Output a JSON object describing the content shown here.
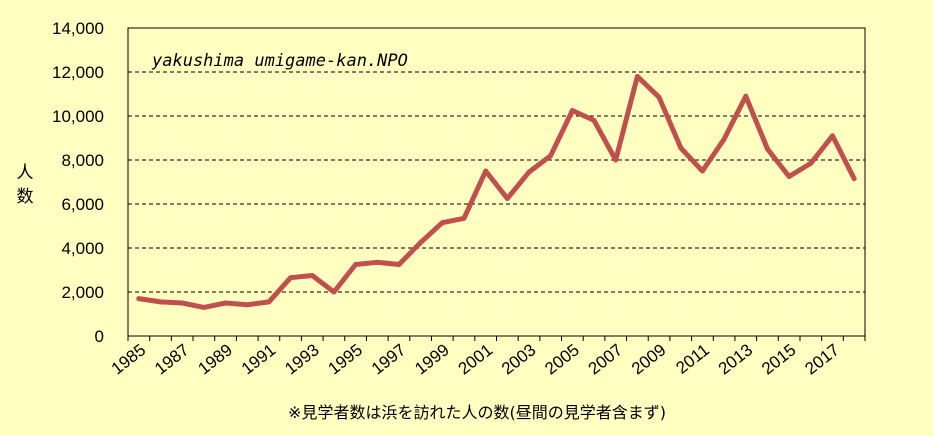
{
  "chart_data": {
    "type": "line",
    "title": "",
    "xlabel": "",
    "ylabel": "人数",
    "annotation": "yakushima umigame-kan.NPO",
    "note": "※見学者数は浜を訪れた人の数(昼間の見学者含まず)",
    "x": [
      1985,
      1986,
      1987,
      1988,
      1989,
      1990,
      1991,
      1992,
      1993,
      1994,
      1995,
      1996,
      1997,
      1998,
      1999,
      2000,
      2001,
      2002,
      2003,
      2004,
      2005,
      2006,
      2007,
      2008,
      2009,
      2010,
      2011,
      2012,
      2013,
      2014,
      2015,
      2016,
      2017,
      2018
    ],
    "series": [
      {
        "values": [
          1700,
          1550,
          1500,
          1300,
          1500,
          1420,
          1550,
          2650,
          2750,
          2000,
          3250,
          3350,
          3250,
          4250,
          5150,
          5350,
          7500,
          6250,
          7450,
          8200,
          10250,
          9800,
          8000,
          11800,
          10850,
          8550,
          7500,
          8950,
          10900,
          8500,
          7250,
          7850,
          9100,
          7150
        ],
        "color": "#c0504d"
      }
    ],
    "ylim": [
      0,
      14000
    ],
    "y_ticks": [
      "0",
      "2,000",
      "4,000",
      "6,000",
      "8,000",
      "10,000",
      "12,000",
      "14,000"
    ],
    "x_tick_labels": [
      "1985",
      "1987",
      "1989",
      "1991",
      "1993",
      "1995",
      "1997",
      "1999",
      "2001",
      "2003",
      "2005",
      "2007",
      "2009",
      "2011",
      "2013",
      "2015",
      "2017"
    ],
    "grid": "horizontal dashed",
    "background_color": "#ffffc2",
    "plot_border_color": "#000000"
  }
}
